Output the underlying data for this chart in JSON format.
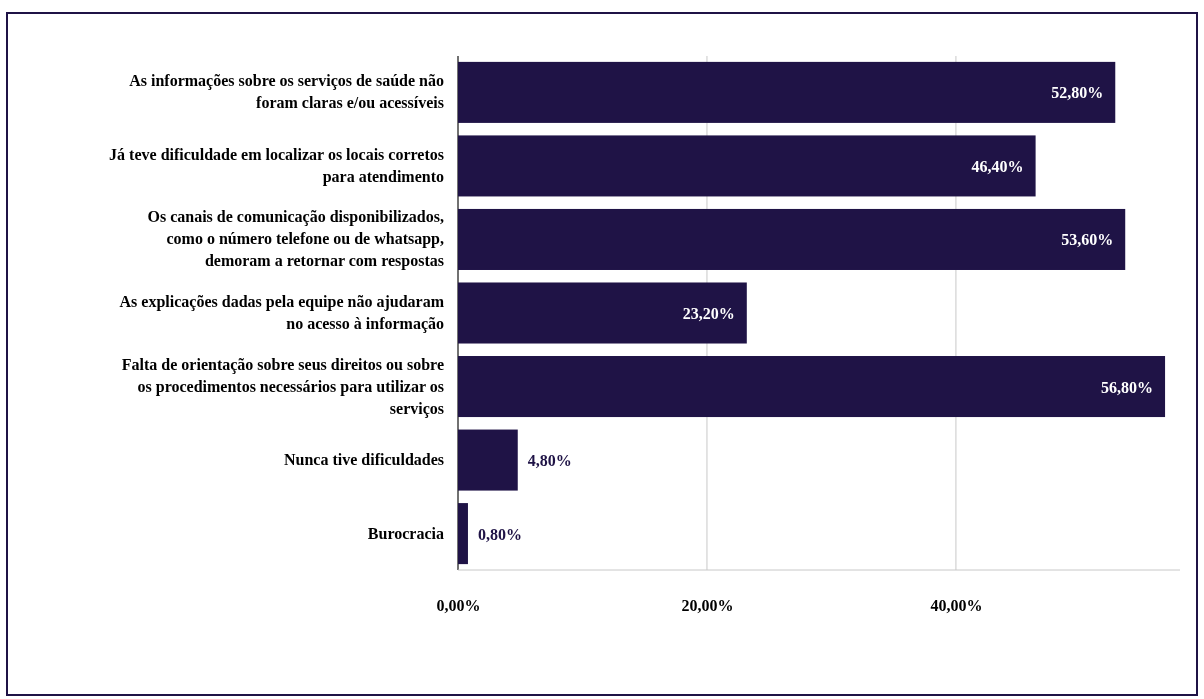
{
  "chart_data": {
    "type": "bar",
    "orientation": "horizontal",
    "categories": [
      "As informações sobre os serviços de saúde não foram claras e/ou acessíveis",
      "Já teve dificuldade em localizar os locais corretos para atendimento",
      "Os canais de comunicação disponibilizados, como o número telefone ou de whatsapp, demoram a retornar com respostas",
      "As explicações dadas pela equipe não ajudaram no acesso à informação",
      "Falta de orientação sobre seus direitos ou sobre os procedimentos necessários para utilizar os serviços",
      "Nunca tive dificuldades",
      "Burocracia"
    ],
    "values": [
      52.8,
      46.4,
      53.6,
      23.2,
      56.8,
      4.8,
      0.8
    ],
    "value_labels": [
      "52,80%",
      "46,40%",
      "53,60%",
      "23,20%",
      "56,80%",
      "4,80%",
      "0,80%"
    ],
    "color": "#1f1346",
    "xlim": [
      0,
      58
    ],
    "xticks": [
      {
        "value": 0,
        "label": "0,00%"
      },
      {
        "value": 20,
        "label": "20,00%"
      },
      {
        "value": 40,
        "label": "40,00%"
      }
    ],
    "grid": "x"
  }
}
